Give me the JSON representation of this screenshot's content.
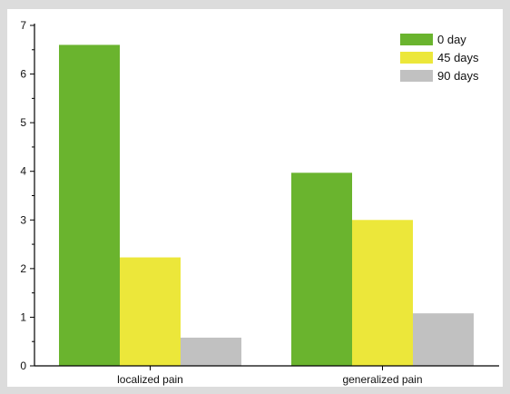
{
  "chart_data": {
    "type": "bar",
    "title": "",
    "xlabel": "",
    "ylabel": "",
    "categories": [
      "localized pain",
      "generalized pain"
    ],
    "series": [
      {
        "name": "0 day",
        "color": "#6ab42e",
        "values": [
          6.6,
          3.97
        ]
      },
      {
        "name": "45 days",
        "color": "#ece73a",
        "values": [
          2.23,
          3.0
        ]
      },
      {
        "name": "90 days",
        "color": "#c1c1c1",
        "values": [
          0.58,
          1.08
        ]
      }
    ],
    "ylim": [
      0,
      7
    ],
    "yticks": [
      0,
      1,
      2,
      3,
      4,
      5,
      6,
      7
    ],
    "grid": false,
    "legend_position": "top-right"
  }
}
